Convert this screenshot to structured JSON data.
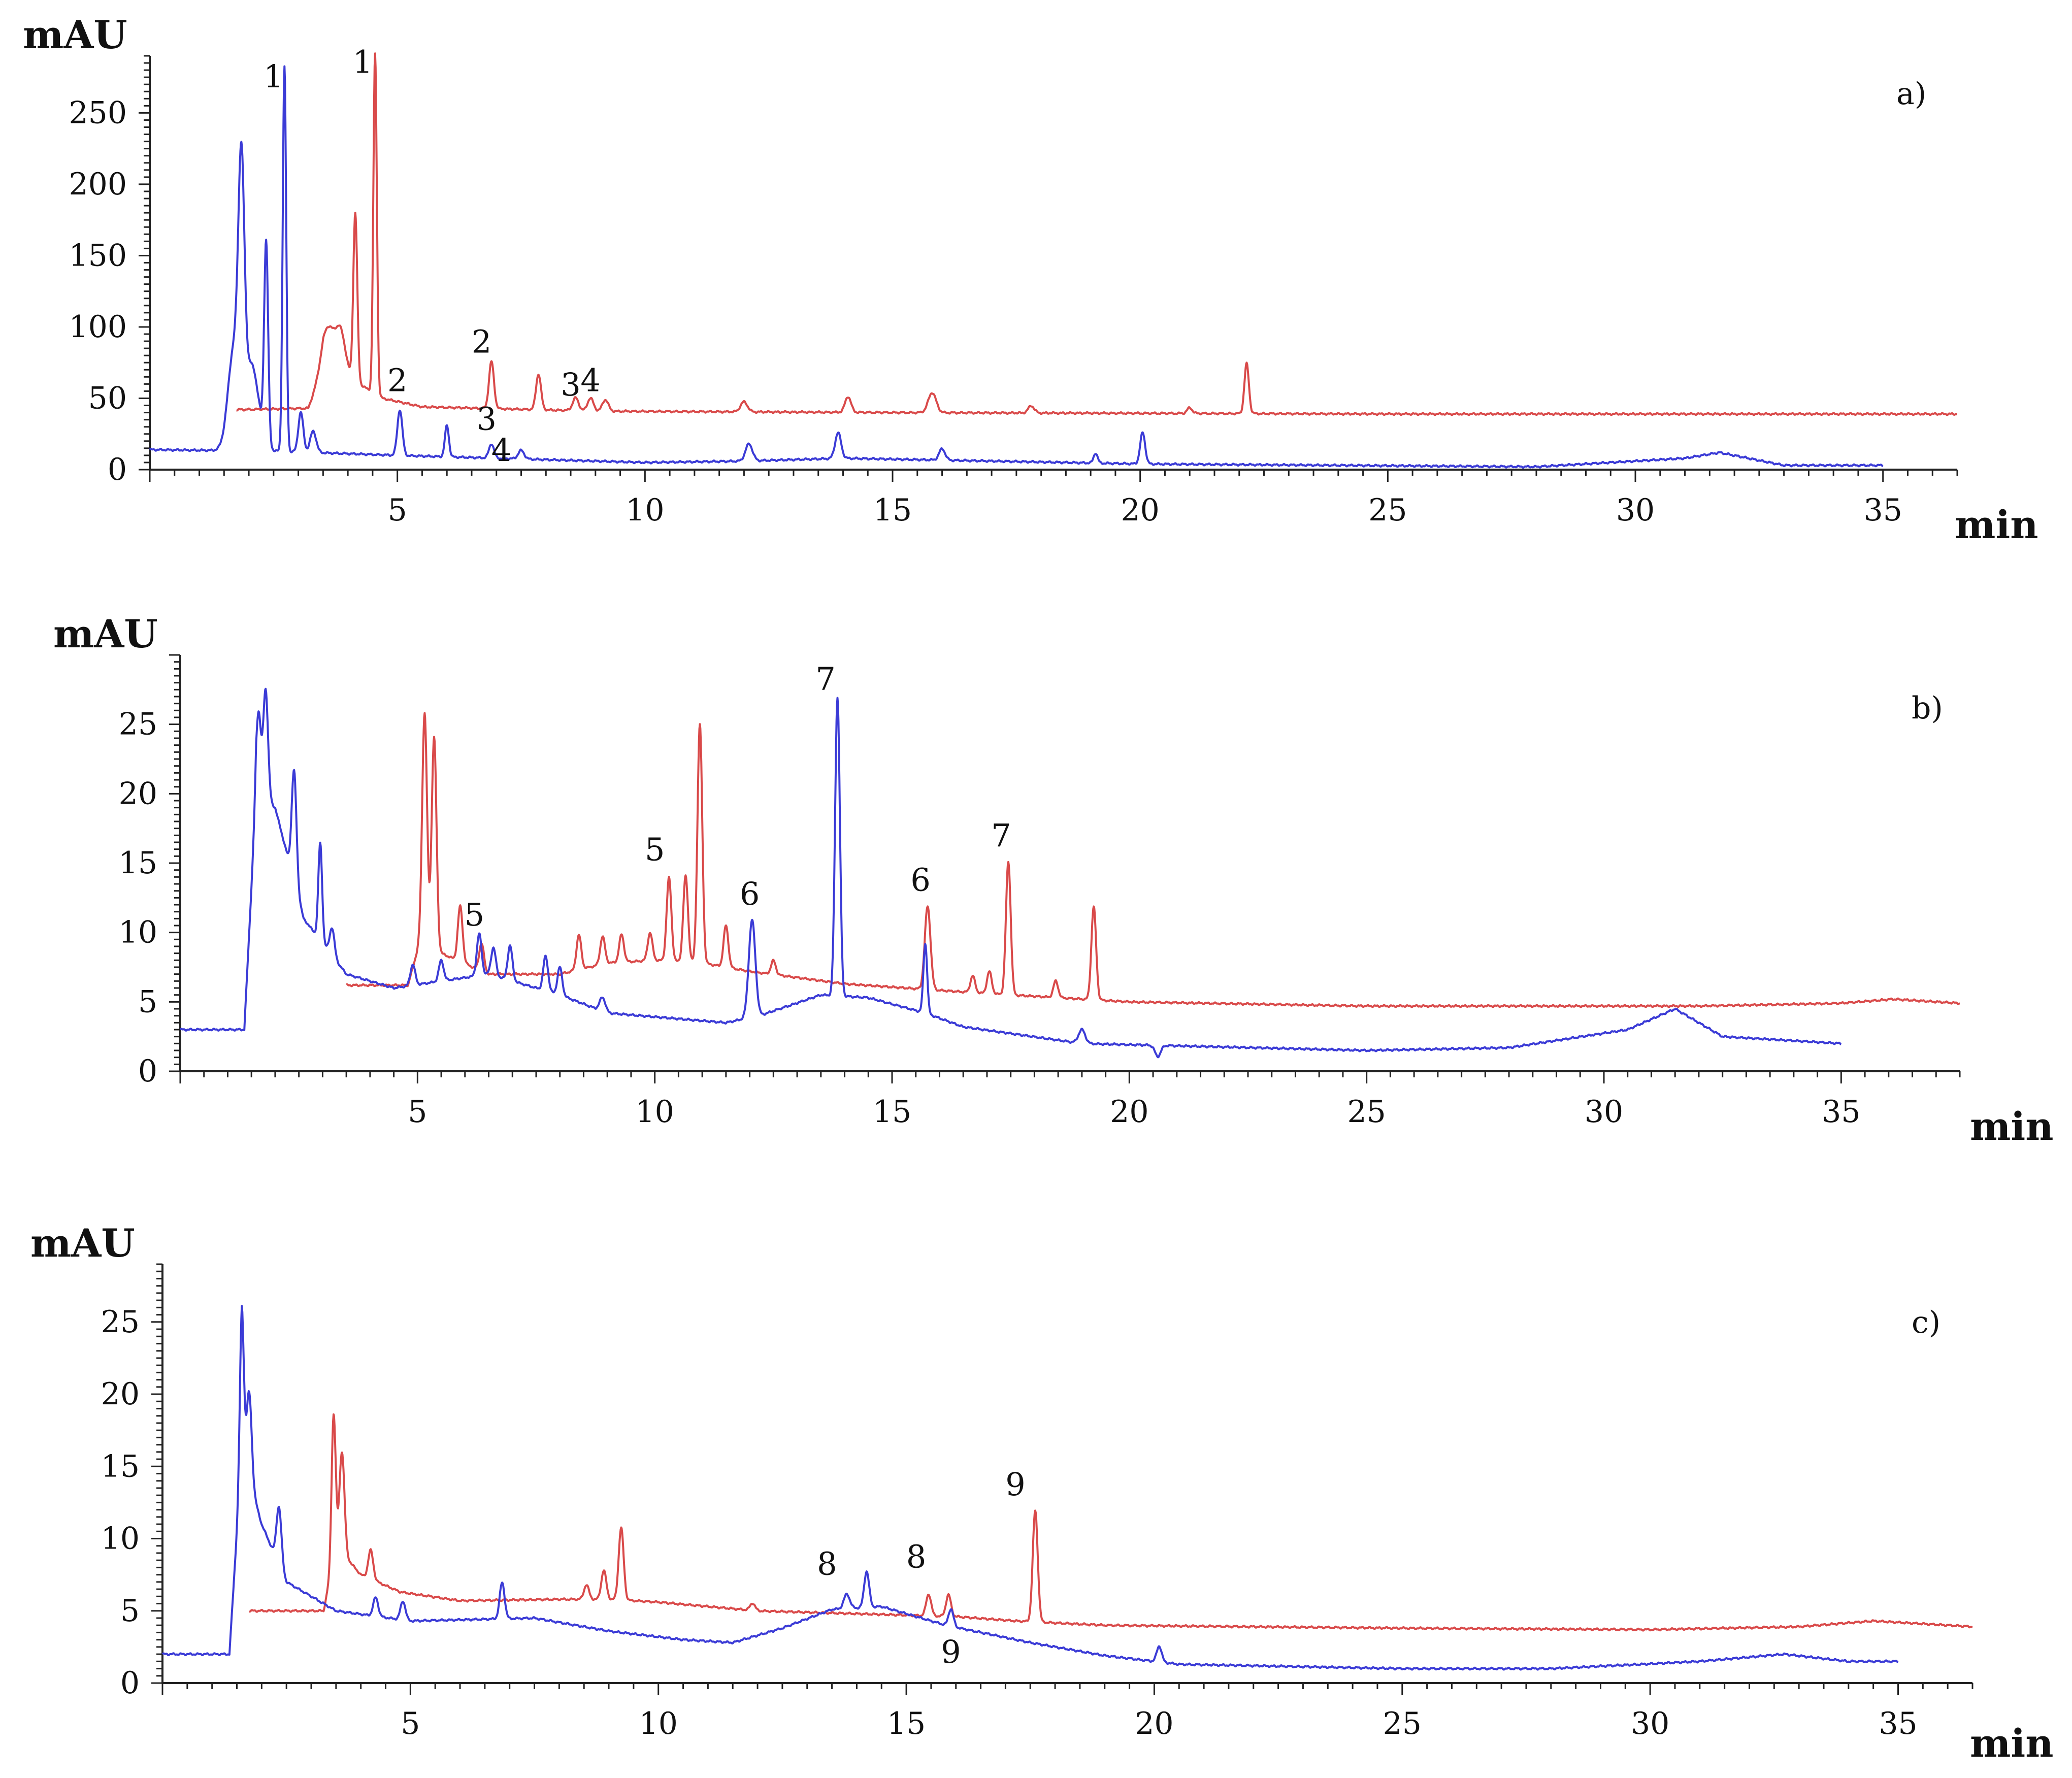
{
  "chart_data": [
    {
      "type": "line",
      "panel_label": "a)",
      "ylabel": "mAU",
      "xlabel": "min",
      "xlim": [
        0,
        36.5
      ],
      "ylim": [
        0,
        290
      ],
      "xticks": [
        5,
        10,
        15,
        20,
        25,
        30,
        35
      ],
      "yticks": [
        0,
        50,
        100,
        150,
        200,
        250
      ],
      "colors": {
        "blue": "#3b3bd6",
        "red": "#d94a4a"
      },
      "series": [
        {
          "name": "blue trace",
          "color": "#3b3bd6",
          "x_end": 35,
          "baseline": [
            [
              0,
              14
            ],
            [
              2.5,
              13
            ],
            [
              5,
              10
            ],
            [
              10,
              5
            ],
            [
              12,
              6
            ],
            [
              14,
              8
            ],
            [
              20,
              4
            ],
            [
              28,
              2
            ],
            [
              31,
              8
            ],
            [
              31.7,
              12
            ],
            [
              33,
              3
            ],
            [
              35,
              3
            ]
          ],
          "peaks": [
            [
              1.7,
              70,
              0.12
            ],
            [
              1.85,
              160,
              0.06
            ],
            [
              2.05,
              60,
              0.15
            ],
            [
              2.35,
              140,
              0.04
            ],
            [
              2.72,
              270,
              0.035
            ],
            [
              3.05,
              28,
              0.05
            ],
            [
              3.3,
              15,
              0.06
            ],
            [
              5.05,
              32,
              0.05
            ],
            [
              6.0,
              22,
              0.04
            ],
            [
              6.9,
              10,
              0.05
            ],
            [
              7.5,
              6,
              0.06
            ],
            [
              12.1,
              12,
              0.07
            ],
            [
              13.9,
              18,
              0.06
            ],
            [
              16.0,
              8,
              0.06
            ],
            [
              19.1,
              7,
              0.04
            ],
            [
              20.05,
              22,
              0.05
            ]
          ]
        },
        {
          "name": "red trace",
          "color": "#d94a4a",
          "x_start": 1.75,
          "x_end": 36.5,
          "baseline": [
            [
              1.75,
              42
            ],
            [
              3.2,
              43
            ],
            [
              3.5,
              70
            ],
            [
              4.0,
              65
            ],
            [
              4.7,
              50
            ],
            [
              5.5,
              44
            ],
            [
              9,
              41
            ],
            [
              15,
              40
            ],
            [
              25,
              39
            ],
            [
              36.5,
              39
            ]
          ],
          "peaks": [
            [
              3.6,
              30,
              0.12
            ],
            [
              3.85,
              30,
              0.1
            ],
            [
              4.15,
              118,
              0.04
            ],
            [
              4.55,
              238,
              0.035
            ],
            [
              6.9,
              33,
              0.05
            ],
            [
              7.85,
              25,
              0.05
            ],
            [
              8.6,
              9,
              0.06
            ],
            [
              8.9,
              9,
              0.06
            ],
            [
              9.2,
              8,
              0.06
            ],
            [
              12.0,
              7,
              0.07
            ],
            [
              14.1,
              11,
              0.06
            ],
            [
              15.8,
              14,
              0.08
            ],
            [
              17.8,
              5,
              0.06
            ],
            [
              22.15,
              35,
              0.045
            ],
            [
              21.0,
              4,
              0.05
            ]
          ]
        }
      ],
      "annotations": [
        {
          "text": "1",
          "x": 2.5,
          "y": 268
        },
        {
          "text": "1",
          "x": 4.3,
          "y": 278
        },
        {
          "text": "2",
          "x": 5.0,
          "y": 55
        },
        {
          "text": "2",
          "x": 6.7,
          "y": 82
        },
        {
          "text": "3",
          "x": 6.8,
          "y": 28
        },
        {
          "text": "4",
          "x": 7.1,
          "y": 6
        },
        {
          "text": "3",
          "x": 8.5,
          "y": 52
        },
        {
          "text": "4",
          "x": 8.9,
          "y": 55
        }
      ]
    },
    {
      "type": "line",
      "panel_label": "b)",
      "ylabel": "mAU",
      "xlabel": "min",
      "xlim": [
        0,
        37.5
      ],
      "ylim": [
        0,
        30
      ],
      "xticks": [
        5,
        10,
        15,
        20,
        25,
        30,
        35
      ],
      "yticks": [
        0,
        5,
        10,
        15,
        20,
        25
      ],
      "colors": {
        "blue": "#3b3bd6",
        "red": "#d94a4a"
      },
      "series": [
        {
          "name": "blue trace",
          "color": "#3b3bd6",
          "x_end": 35,
          "baseline": [
            [
              0,
              3.0
            ],
            [
              1.35,
              3.0
            ],
            [
              1.6,
              20
            ],
            [
              2.0,
              19
            ],
            [
              2.6,
              11
            ],
            [
              3.5,
              7
            ],
            [
              4.5,
              6
            ],
            [
              6.5,
              7
            ],
            [
              8,
              5.5
            ],
            [
              9,
              4.2
            ],
            [
              11.5,
              3.5
            ],
            [
              12.2,
              4
            ],
            [
              13.5,
              5.5
            ],
            [
              14.5,
              5.3
            ],
            [
              15.7,
              4.2
            ],
            [
              16.5,
              3.2
            ],
            [
              19,
              2.0
            ],
            [
              25,
              1.5
            ],
            [
              28,
              1.7
            ],
            [
              30.5,
              3.0
            ],
            [
              31.5,
              4.5
            ],
            [
              32.5,
              2.5
            ],
            [
              35,
              2.0
            ]
          ],
          "peaks": [
            [
              1.65,
              6,
              0.05
            ],
            [
              1.8,
              8,
              0.05
            ],
            [
              2.4,
              8,
              0.05
            ],
            [
              2.95,
              7,
              0.04
            ],
            [
              3.2,
              2,
              0.05
            ],
            [
              4.9,
              1.5,
              0.05
            ],
            [
              5.5,
              1.5,
              0.05
            ],
            [
              6.3,
              3,
              0.05
            ],
            [
              6.6,
              2,
              0.05
            ],
            [
              6.95,
              2.5,
              0.05
            ],
            [
              7.7,
              2.5,
              0.05
            ],
            [
              8.0,
              2.0,
              0.05
            ],
            [
              8.9,
              1.0,
              0.06
            ],
            [
              12.05,
              7.0,
              0.07
            ],
            [
              13.85,
              21.5,
              0.05
            ],
            [
              15.7,
              5.0,
              0.04
            ],
            [
              19.0,
              1.0,
              0.07
            ],
            [
              20.6,
              -0.8,
              0.06
            ]
          ]
        },
        {
          "name": "red trace",
          "color": "#d94a4a",
          "x_start": 3.5,
          "x_end": 37.5,
          "baseline": [
            [
              3.5,
              6.2
            ],
            [
              4.8,
              6.2
            ],
            [
              5.1,
              10
            ],
            [
              5.5,
              8.5
            ],
            [
              6.5,
              7.0
            ],
            [
              8,
              7.0
            ],
            [
              9,
              7.8
            ],
            [
              10,
              8.0
            ],
            [
              11,
              7.8
            ],
            [
              12,
              7.2
            ],
            [
              14,
              6.3
            ],
            [
              17,
              5.6
            ],
            [
              20,
              5.0
            ],
            [
              25,
              4.7
            ],
            [
              32,
              4.7
            ],
            [
              35,
              4.9
            ],
            [
              36.1,
              5.2
            ],
            [
              37.5,
              4.9
            ]
          ],
          "peaks": [
            [
              5.15,
              16,
              0.05
            ],
            [
              5.35,
              15,
              0.05
            ],
            [
              5.9,
              4,
              0.05
            ],
            [
              6.35,
              2,
              0.05
            ],
            [
              8.4,
              2.5,
              0.05
            ],
            [
              8.9,
              2.0,
              0.05
            ],
            [
              9.3,
              2.0,
              0.05
            ],
            [
              9.9,
              2.0,
              0.05
            ],
            [
              10.3,
              6.0,
              0.05
            ],
            [
              10.65,
              6.2,
              0.05
            ],
            [
              10.95,
              17.2,
              0.05
            ],
            [
              11.5,
              3.0,
              0.05
            ],
            [
              12.5,
              1.0,
              0.05
            ],
            [
              15.75,
              6.0,
              0.06
            ],
            [
              16.7,
              1.2,
              0.05
            ],
            [
              17.05,
              1.6,
              0.05
            ],
            [
              17.45,
              9.6,
              0.05
            ],
            [
              18.45,
              1.2,
              0.05
            ],
            [
              19.25,
              6.7,
              0.05
            ]
          ]
        }
      ],
      "annotations": [
        {
          "text": "5",
          "x": 6.2,
          "y": 10.5
        },
        {
          "text": "5",
          "x": 10.0,
          "y": 15.2
        },
        {
          "text": "6",
          "x": 12.0,
          "y": 12.0
        },
        {
          "text": "6",
          "x": 15.6,
          "y": 13.0
        },
        {
          "text": "7",
          "x": 13.6,
          "y": 27.5
        },
        {
          "text": "7",
          "x": 17.3,
          "y": 16.2
        }
      ]
    },
    {
      "type": "line",
      "panel_label": "c)",
      "ylabel": "mAU",
      "xlabel": "min",
      "xlim": [
        0,
        36.5
      ],
      "ylim": [
        0,
        29
      ],
      "xticks": [
        5,
        10,
        15,
        20,
        25,
        30,
        35
      ],
      "yticks": [
        0,
        5,
        10,
        15,
        20,
        25
      ],
      "colors": {
        "blue": "#3b3bd6",
        "red": "#d94a4a"
      },
      "series": [
        {
          "name": "blue trace",
          "color": "#3b3bd6",
          "x_end": 35,
          "baseline": [
            [
              0,
              2.0
            ],
            [
              1.35,
              2.0
            ],
            [
              1.6,
              16
            ],
            [
              2.0,
              11
            ],
            [
              2.5,
              7
            ],
            [
              3.5,
              5.0
            ],
            [
              5,
              4.3
            ],
            [
              7.5,
              4.5
            ],
            [
              9,
              3.6
            ],
            [
              10.5,
              3.0
            ],
            [
              11.5,
              2.8
            ],
            [
              12.5,
              3.8
            ],
            [
              13.5,
              5.1
            ],
            [
              14.5,
              5.3
            ],
            [
              15.8,
              4.0
            ],
            [
              17.5,
              2.8
            ],
            [
              19,
              1.9
            ],
            [
              20.5,
              1.3
            ],
            [
              25,
              1.0
            ],
            [
              28,
              1.0
            ],
            [
              31,
              1.5
            ],
            [
              32.7,
              2.0
            ],
            [
              34,
              1.5
            ],
            [
              35,
              1.5
            ]
          ],
          "peaks": [
            [
              1.6,
              10,
              0.04
            ],
            [
              1.75,
              6,
              0.05
            ],
            [
              2.35,
              4,
              0.05
            ],
            [
              4.3,
              1.3,
              0.05
            ],
            [
              4.85,
              1.3,
              0.05
            ],
            [
              6.85,
              2.5,
              0.05
            ],
            [
              13.8,
              1.0,
              0.06
            ],
            [
              14.2,
              2.5,
              0.05
            ],
            [
              15.9,
              1.2,
              0.05
            ],
            [
              20.1,
              1.1,
              0.05
            ]
          ]
        },
        {
          "name": "red trace",
          "color": "#d94a4a",
          "x_start": 1.75,
          "x_end": 36.5,
          "baseline": [
            [
              1.75,
              5.0
            ],
            [
              3.25,
              5.0
            ],
            [
              3.5,
              9.5
            ],
            [
              4.0,
              7.5
            ],
            [
              4.8,
              6.3
            ],
            [
              6,
              5.7
            ],
            [
              8,
              5.8
            ],
            [
              9,
              5.8
            ],
            [
              10,
              5.6
            ],
            [
              12,
              5.0
            ],
            [
              14,
              4.8
            ],
            [
              16,
              4.6
            ],
            [
              17.2,
              4.3
            ],
            [
              19,
              4.0
            ],
            [
              25,
              3.8
            ],
            [
              30,
              3.7
            ],
            [
              33,
              3.9
            ],
            [
              34.5,
              4.3
            ],
            [
              36.5,
              3.9
            ]
          ],
          "peaks": [
            [
              3.45,
              10,
              0.04
            ],
            [
              3.62,
              7,
              0.05
            ],
            [
              4.2,
              2.0,
              0.05
            ],
            [
              8.55,
              1.0,
              0.05
            ],
            [
              8.9,
              2.0,
              0.05
            ],
            [
              9.25,
              5.0,
              0.05
            ],
            [
              11.9,
              0.5,
              0.05
            ],
            [
              15.45,
              1.5,
              0.05
            ],
            [
              15.85,
              1.5,
              0.05
            ],
            [
              17.6,
              7.7,
              0.05
            ]
          ]
        }
      ],
      "annotations": [
        {
          "text": "8",
          "x": 13.4,
          "y": 7.5
        },
        {
          "text": "8",
          "x": 15.2,
          "y": 8.0
        },
        {
          "text": "9",
          "x": 15.9,
          "y": 1.4
        },
        {
          "text": "9",
          "x": 17.2,
          "y": 13.0
        }
      ]
    }
  ]
}
